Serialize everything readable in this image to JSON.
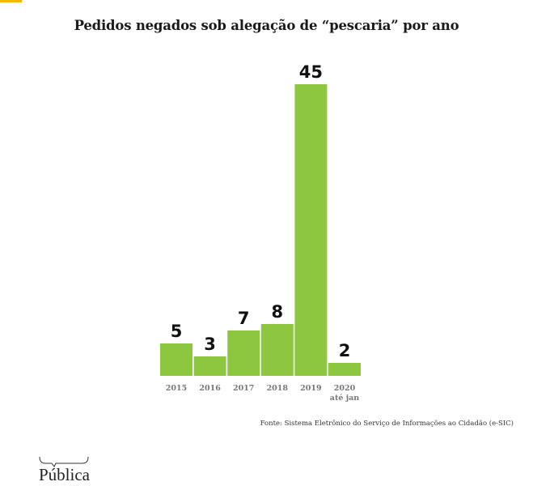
{
  "colors": {
    "accent": "#F5B800",
    "bar": "#8DC63F",
    "label": "#111111",
    "tick": "#777777"
  },
  "title": "Pedidos negados sob alegação de “pescaria” por ano",
  "chart_data": {
    "type": "bar",
    "title": "Pedidos negados sob alegação de “pescaria” por ano",
    "categories": [
      "2015",
      "2016",
      "2017",
      "2018",
      "2019",
      "2020"
    ],
    "category_sublabels": [
      "",
      "",
      "",
      "",
      "",
      "até jan"
    ],
    "values": [
      5,
      3,
      7,
      8,
      45,
      2
    ],
    "data_labels": [
      "5",
      "3",
      "7",
      "8",
      "45",
      "2"
    ],
    "xlabel": "",
    "ylabel": "",
    "ylim": [
      0,
      45
    ],
    "grid": false,
    "legend": "none"
  },
  "source": "Fonte: Sistema Eletrônico do Serviço de Informações ao Cidadão (e-SIC)",
  "logo": {
    "text": "Pública"
  }
}
